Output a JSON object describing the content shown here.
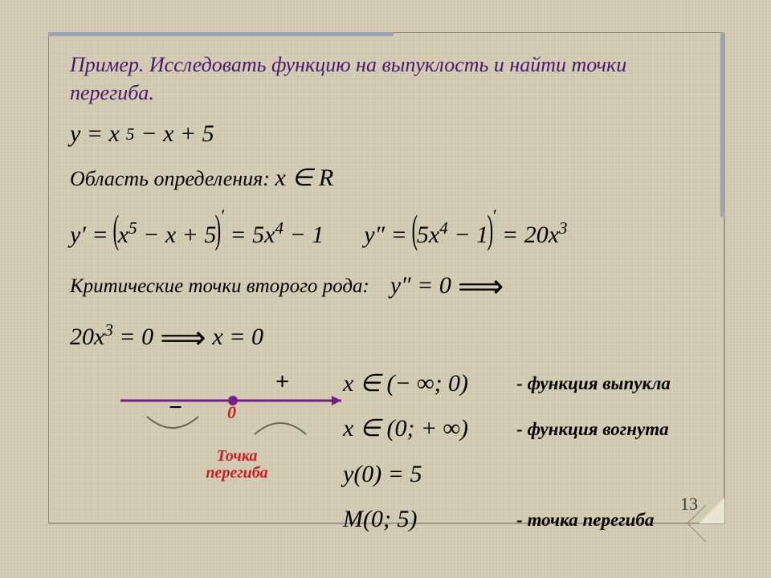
{
  "title": "Пример. Исследовать функцию на выпуклость и найти точки перегиба.",
  "function_html": "y = x<sup>5</sup> − x + 5",
  "domain_label": "Область определения:",
  "domain_value_html": "x ∈ R",
  "deriv1_html": "y′ = <span class='big-paren'>(</span>x<sup>5</sup> − x + 5<span class='big-paren'>)</span><span class='prime-sup'>′</span> = 5x<sup>4</sup> − 1",
  "deriv2_html": "y″ = <span class='big-paren'>(</span>5x<sup>4</sup> − 1<span class='big-paren'>)</span><span class='prime-sup'>′</span> = 20x<sup>3</sup>",
  "crit_label": "Критические точки второго рода:",
  "crit_eq1": "y″ = 0",
  "crit_eq2_html": "20x<sup>3</sup> = 0",
  "crit_sol": "x = 0",
  "intervals": {
    "i1": "x ∈ (− ∞; 0)",
    "i1_desc": "- функция выпукла",
    "i2": "x ∈ (0; + ∞)",
    "i2_desc": "- функция вогнута",
    "yval": "y(0) = 5",
    "point": "M(0; 5)",
    "point_desc": "- точка перегиба"
  },
  "axis": {
    "zero_label": "0",
    "left_sign": "−",
    "right_sign": "+",
    "inflection_label": "Точка\nперегиба",
    "axis_color": "#7a1b8a",
    "line_width": 3,
    "dot_x_ratio": 0.5,
    "left_curve_color": "#6a6658",
    "right_curve_color": "#6a6658"
  },
  "page_number": "13",
  "colors": {
    "title": "#4a1870",
    "zero": "#c82020",
    "axis": "#7a1b8a",
    "body": "#000000"
  }
}
